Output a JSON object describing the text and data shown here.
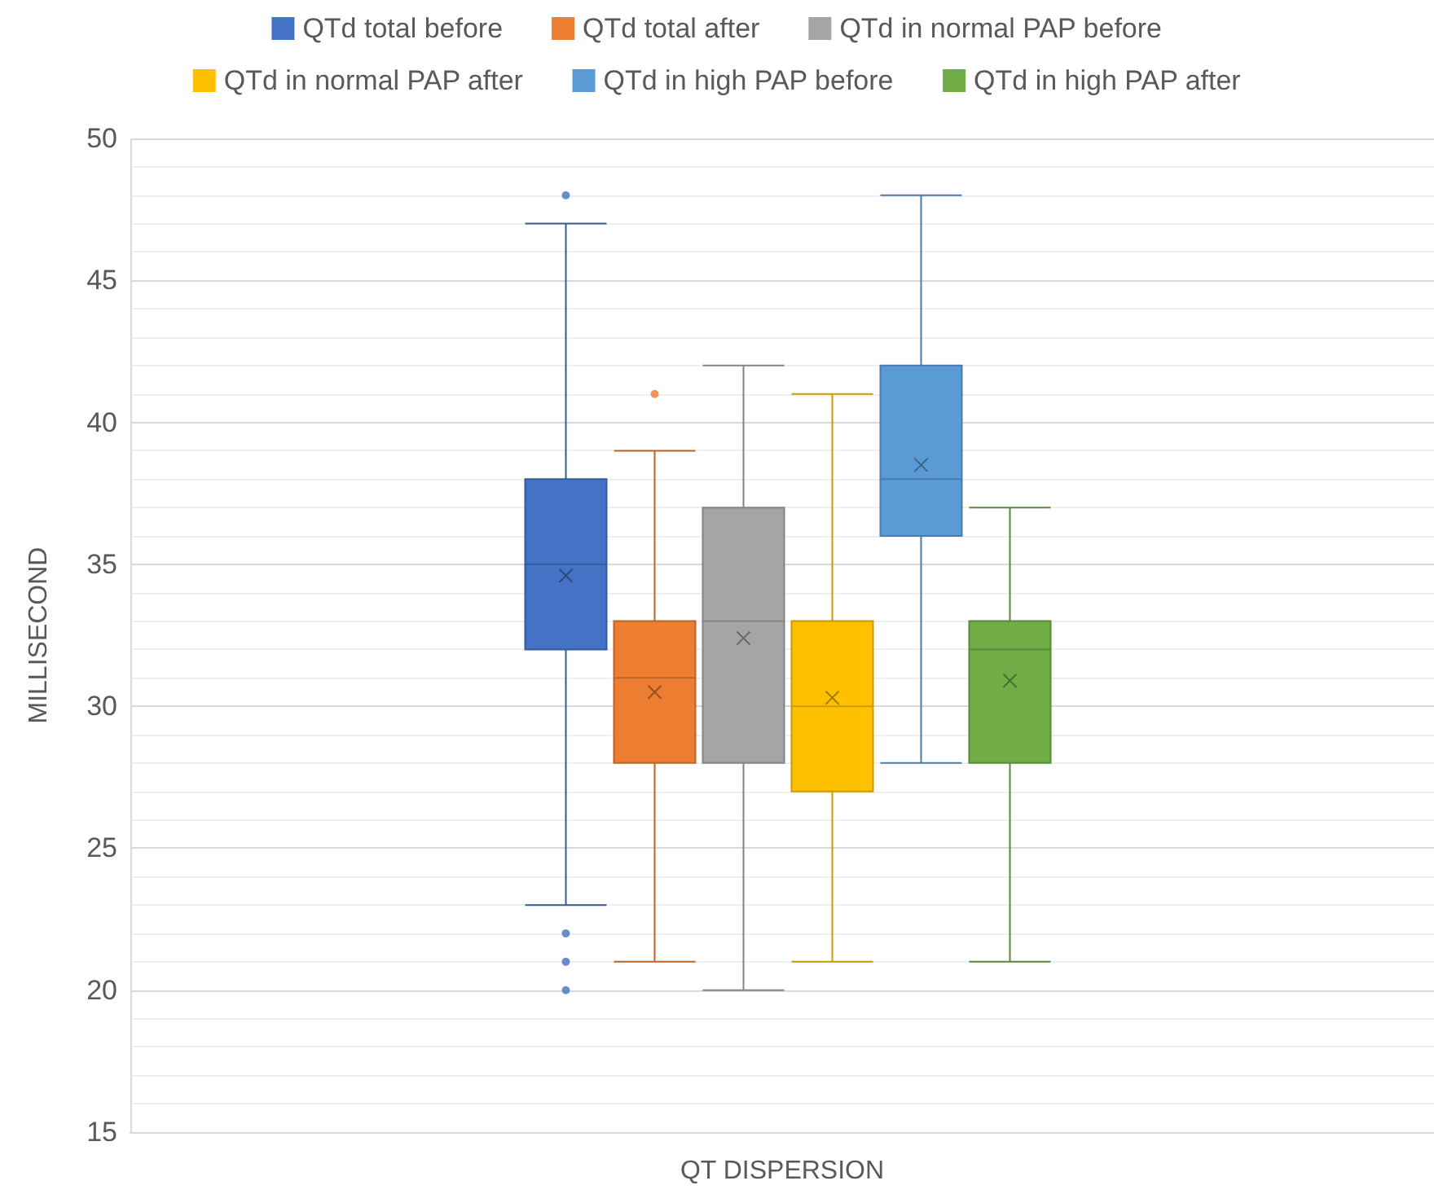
{
  "chart_data": {
    "type": "box",
    "ylabel": "MILLISECOND",
    "categories": [
      "QT DISPERSION"
    ],
    "ylim": [
      15,
      50
    ],
    "yticks": [
      15,
      20,
      25,
      30,
      35,
      40,
      45,
      50
    ],
    "grid": true,
    "legend": "top",
    "series": [
      {
        "name": "QTd total before",
        "color": "#4472c4",
        "boxes": [
          {
            "low": 23,
            "q1": 32,
            "median": 35,
            "q3": 38,
            "high": 47,
            "mean": 34.6,
            "outliers": [
              48,
              22,
              21,
              20
            ]
          }
        ]
      },
      {
        "name": "QTd total after",
        "color": "#ed7d31",
        "boxes": [
          {
            "low": 21,
            "q1": 28,
            "median": 31,
            "q3": 33,
            "high": 39,
            "mean": 30.5,
            "outliers": [
              41
            ]
          }
        ]
      },
      {
        "name": "QTd in normal PAP before",
        "color": "#a5a5a5",
        "boxes": [
          {
            "low": 20,
            "q1": 28,
            "median": 33,
            "q3": 37,
            "high": 42,
            "mean": 32.4
          }
        ]
      },
      {
        "name": "QTd in normal PAP after",
        "color": "#ffc000",
        "boxes": [
          {
            "low": 21,
            "q1": 27,
            "median": 30,
            "q3": 33,
            "high": 41,
            "mean": 30.3
          }
        ]
      },
      {
        "name": "QTd in high PAP before",
        "color": "#5b9bd5",
        "boxes": [
          {
            "low": 28,
            "q1": 36,
            "median": 38,
            "q3": 42,
            "high": 48,
            "mean": 38.5
          }
        ]
      },
      {
        "name": "QTd in high PAP after",
        "color": "#70ad47",
        "boxes": [
          {
            "low": 21,
            "q1": 28,
            "median": 32,
            "q3": 33,
            "high": 37,
            "mean": 30.9
          }
        ]
      }
    ]
  }
}
